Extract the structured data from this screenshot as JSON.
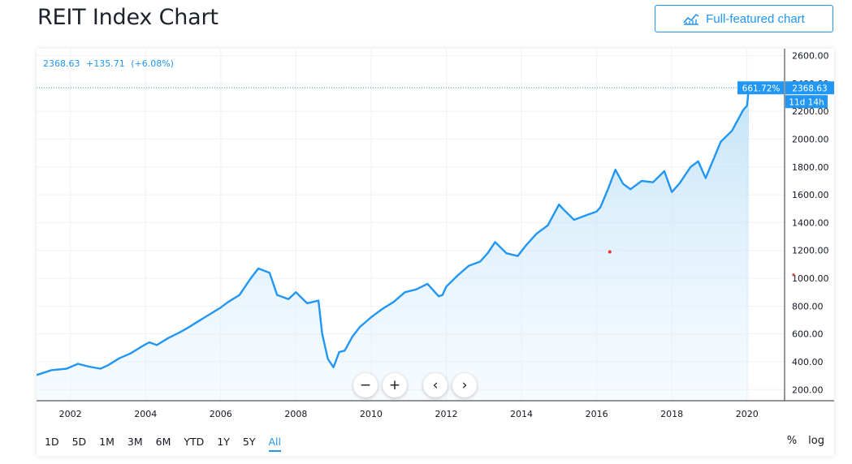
{
  "page": {
    "title": "REIT Index Chart",
    "full_featured_label": "Full-featured chart"
  },
  "legend": {
    "value": "2368.63",
    "change": "+135.71",
    "change_pct": "(+6.08%)"
  },
  "price_labels": {
    "percent": "661.72%",
    "last": "2368.63",
    "countdown": "11d 14h"
  },
  "nav_buttons": {
    "zoom_out": "−",
    "zoom_in": "+",
    "back": "‹",
    "forward": "›"
  },
  "ranges": {
    "items": [
      {
        "label": "1D"
      },
      {
        "label": "5D"
      },
      {
        "label": "1M"
      },
      {
        "label": "3M"
      },
      {
        "label": "6M"
      },
      {
        "label": "YTD"
      },
      {
        "label": "1Y"
      },
      {
        "label": "5Y"
      },
      {
        "label": "All"
      }
    ],
    "active": "All"
  },
  "scale_toggles": {
    "percent": "%",
    "log": "log"
  },
  "colors": {
    "accent": "#2196f3",
    "line": "#2196f3",
    "area_top": "#b8dff8",
    "marker": "#e53935"
  },
  "chart_data": {
    "type": "area",
    "title": "REIT Index Chart",
    "xlabel": "",
    "ylabel": "",
    "xlim": [
      2001.1,
      2021.0
    ],
    "ylim": [
      120,
      2650
    ],
    "grid": true,
    "y_axis_position": "right",
    "x_ticks": [
      "2002",
      "2004",
      "2006",
      "2008",
      "2010",
      "2012",
      "2014",
      "2016",
      "2018",
      "2020"
    ],
    "y_ticks": [
      "200.00",
      "400.00",
      "600.00",
      "800.00",
      "1000.00",
      "1200.00",
      "1400.00",
      "1600.00",
      "1800.00",
      "2000.00",
      "2200.00",
      "2400.00",
      "2600.00"
    ],
    "last_value": 2368.63,
    "marker": {
      "x": 2016.35,
      "y": 1190
    },
    "series": [
      {
        "x": [
          2001.1,
          2001.5,
          2001.9,
          2002.2,
          2002.5,
          2002.8,
          2003.0,
          2003.3,
          2003.6,
          2003.9,
          2004.1,
          2004.3,
          2004.6,
          2004.9,
          2005.1,
          2005.4,
          2005.7,
          2006.0,
          2006.2,
          2006.5,
          2006.8,
          2007.0,
          2007.3,
          2007.5,
          2007.8,
          2008.0,
          2008.3,
          2008.6,
          2008.7,
          2008.85,
          2009.0,
          2009.15,
          2009.3,
          2009.5,
          2009.7,
          2010.0,
          2010.3,
          2010.6,
          2010.9,
          2011.2,
          2011.5,
          2011.8,
          2011.9,
          2012.0,
          2012.3,
          2012.6,
          2012.9,
          2013.1,
          2013.3,
          2013.6,
          2013.9,
          2014.1,
          2014.4,
          2014.7,
          2015.0,
          2015.1,
          2015.4,
          2015.7,
          2016.0,
          2016.1,
          2016.3,
          2016.5,
          2016.7,
          2016.9,
          2017.2,
          2017.5,
          2017.8,
          2018.0,
          2018.2,
          2018.5,
          2018.7,
          2018.9,
          2019.1,
          2019.3,
          2019.6,
          2019.9,
          2020.0,
          2020.05
        ],
        "y": [
          305,
          340,
          350,
          385,
          365,
          350,
          375,
          425,
          460,
          510,
          540,
          520,
          570,
          610,
          640,
          690,
          740,
          790,
          830,
          880,
          1000,
          1070,
          1040,
          880,
          850,
          900,
          820,
          840,
          600,
          420,
          360,
          470,
          480,
          580,
          650,
          720,
          780,
          830,
          900,
          920,
          960,
          870,
          880,
          940,
          1020,
          1090,
          1120,
          1180,
          1260,
          1180,
          1160,
          1230,
          1320,
          1380,
          1530,
          1500,
          1420,
          1450,
          1480,
          1510,
          1640,
          1780,
          1680,
          1640,
          1700,
          1690,
          1770,
          1620,
          1680,
          1800,
          1840,
          1720,
          1850,
          1980,
          2060,
          2210,
          2240,
          2368.63
        ]
      }
    ]
  }
}
